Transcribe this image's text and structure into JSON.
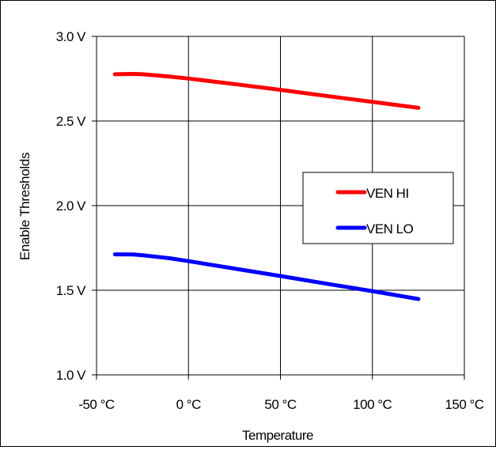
{
  "chart_data": {
    "type": "line",
    "xlabel": "Temperature",
    "ylabel": "Enable Thresholds",
    "xlim": [
      -50,
      150
    ],
    "ylim": [
      1.0,
      3.0
    ],
    "x_ticks": [
      -50,
      0,
      50,
      100,
      150
    ],
    "x_tick_labels": [
      "-50 °C",
      "0 °C",
      "50 °C",
      "100 °C",
      "150 °C"
    ],
    "y_ticks": [
      1.0,
      1.5,
      2.0,
      2.5,
      3.0
    ],
    "y_tick_labels": [
      "1.0 V",
      "1.5 V",
      "2.0 V",
      "2.5 V",
      "3.0 V"
    ],
    "grid": true,
    "legend_position": "center-right",
    "series": [
      {
        "name": "VEN HI",
        "color": "#ff0000",
        "x": [
          -40,
          -30,
          -25,
          -10,
          0,
          25,
          50,
          75,
          100,
          125
        ],
        "y": [
          2.776,
          2.778,
          2.776,
          2.762,
          2.751,
          2.718,
          2.684,
          2.648,
          2.613,
          2.578
        ]
      },
      {
        "name": "VEN LO",
        "color": "#0000ff",
        "x": [
          -40,
          -30,
          -25,
          -10,
          0,
          25,
          50,
          75,
          100,
          125
        ],
        "y": [
          1.712,
          1.711,
          1.707,
          1.689,
          1.672,
          1.628,
          1.584,
          1.539,
          1.495,
          1.448
        ]
      }
    ]
  }
}
